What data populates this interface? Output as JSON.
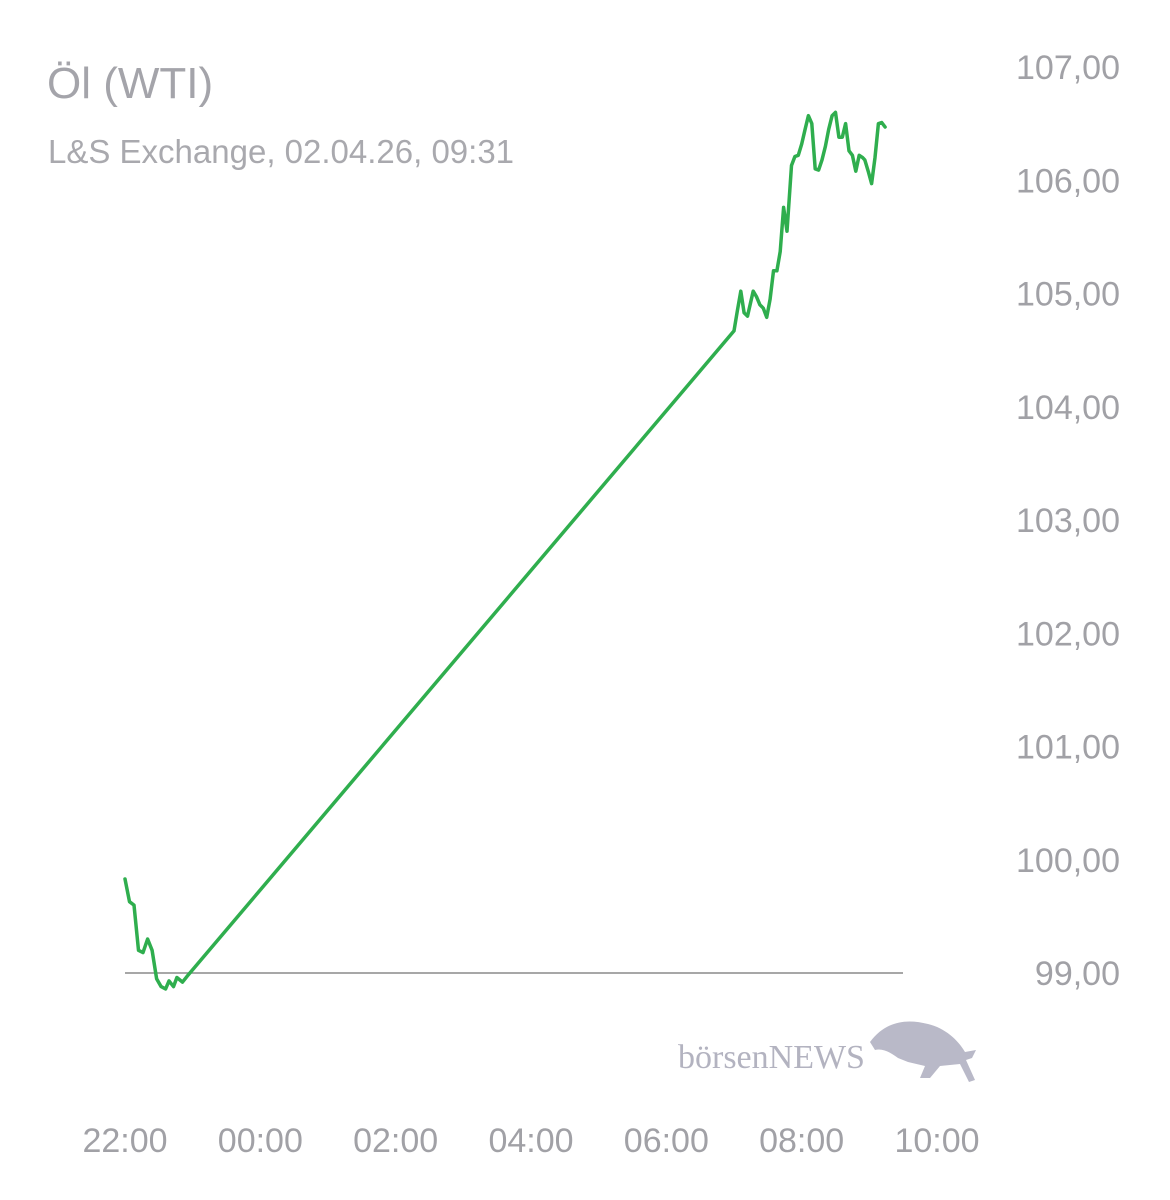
{
  "chart_data": {
    "type": "line",
    "title": "Öl (WTI)",
    "subtitle": "L&S Exchange, 02.04.26, 09:31",
    "watermark": "börsenNEWS",
    "line_color": "#2fae4e",
    "baseline_value": 99.0,
    "ylim": [
      98.3,
      107.4
    ],
    "yticks": [
      {
        "value": 107,
        "label": "107,00"
      },
      {
        "value": 106,
        "label": "106,00"
      },
      {
        "value": 105,
        "label": "105,00"
      },
      {
        "value": 104,
        "label": "104,00"
      },
      {
        "value": 103,
        "label": "103,00"
      },
      {
        "value": 102,
        "label": "102,00"
      },
      {
        "value": 101,
        "label": "101,00"
      },
      {
        "value": 100,
        "label": "100,00"
      },
      {
        "value": 99,
        "label": "99,00"
      }
    ],
    "xlim": [
      "22:00",
      "10:00"
    ],
    "xticks": [
      "22:00",
      "00:00",
      "02:00",
      "04:00",
      "06:00",
      "08:00",
      "10:00"
    ],
    "series": [
      {
        "points": [
          [
            "22:00",
            99.83
          ],
          [
            "22:04",
            99.63
          ],
          [
            "22:08",
            99.6
          ],
          [
            "22:12",
            99.2
          ],
          [
            "22:16",
            99.18
          ],
          [
            "22:20",
            99.3
          ],
          [
            "22:24",
            99.2
          ],
          [
            "22:28",
            98.95
          ],
          [
            "22:32",
            98.88
          ],
          [
            "22:36",
            98.86
          ],
          [
            "22:39",
            98.93
          ],
          [
            "22:43",
            98.88
          ],
          [
            "22:46",
            98.96
          ],
          [
            "22:51",
            98.92
          ],
          [
            "22:55",
            98.97
          ],
          [
            "07:00",
            104.67
          ],
          [
            "07:03",
            104.85
          ],
          [
            "07:06",
            105.02
          ],
          [
            "07:09",
            104.83
          ],
          [
            "07:12",
            104.8
          ],
          [
            "07:17",
            105.02
          ],
          [
            "07:20",
            104.97
          ],
          [
            "07:23",
            104.9
          ],
          [
            "07:26",
            104.87
          ],
          [
            "07:29",
            104.79
          ],
          [
            "07:32",
            104.95
          ],
          [
            "07:35",
            105.2
          ],
          [
            "07:38",
            105.2
          ],
          [
            "07:41",
            105.37
          ],
          [
            "07:44",
            105.76
          ],
          [
            "07:47",
            105.55
          ],
          [
            "07:51",
            106.13
          ],
          [
            "07:54",
            106.21
          ],
          [
            "07:57",
            106.22
          ],
          [
            "08:00",
            106.32
          ],
          [
            "08:03",
            106.45
          ],
          [
            "08:06",
            106.57
          ],
          [
            "08:09",
            106.5
          ],
          [
            "08:12",
            106.1
          ],
          [
            "08:15",
            106.09
          ],
          [
            "08:18",
            106.18
          ],
          [
            "08:21",
            106.3
          ],
          [
            "08:24",
            106.45
          ],
          [
            "08:27",
            106.57
          ],
          [
            "08:30",
            106.6
          ],
          [
            "08:33",
            106.38
          ],
          [
            "08:36",
            106.38
          ],
          [
            "08:39",
            106.5
          ],
          [
            "08:42",
            106.26
          ],
          [
            "08:45",
            106.22
          ],
          [
            "08:48",
            106.08
          ],
          [
            "08:51",
            106.22
          ],
          [
            "08:54",
            106.2
          ],
          [
            "08:56",
            106.18
          ],
          [
            "08:59",
            106.08
          ],
          [
            "09:02",
            105.97
          ],
          [
            "09:05",
            106.2
          ],
          [
            "09:08",
            106.5
          ],
          [
            "09:11",
            106.51
          ],
          [
            "09:14",
            106.47
          ]
        ]
      }
    ]
  }
}
